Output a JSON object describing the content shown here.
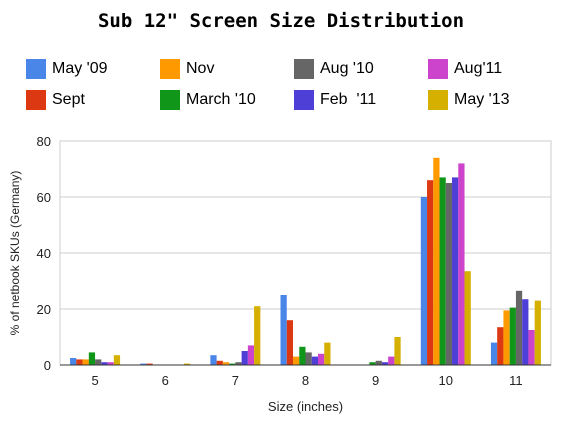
{
  "chart_data": {
    "type": "bar",
    "title": "Sub 12\" Screen Size Distribution",
    "xlabel": "Size (inches)",
    "ylabel": "% of netbook SKUs (Germany)",
    "ylim": [
      0,
      80
    ],
    "yticks": [
      "0",
      "20",
      "40",
      "60",
      "80"
    ],
    "grid": true,
    "legend_position": "top",
    "categories": [
      "5",
      "6",
      "7",
      "8",
      "9",
      "10",
      "11"
    ],
    "series": [
      {
        "name": "May '09",
        "color": "#4a86e8",
        "values": [
          2.5,
          0.5,
          3.5,
          25,
          0,
          60,
          8
        ]
      },
      {
        "name": "Sept",
        "color": "#dc3912",
        "values": [
          2,
          0.5,
          1.5,
          16,
          0,
          66,
          13.5
        ]
      },
      {
        "name": "Nov",
        "color": "#ff9900",
        "values": [
          2,
          0,
          1,
          3,
          0,
          74,
          19.5
        ]
      },
      {
        "name": "March '10",
        "color": "#109618",
        "values": [
          4.5,
          0,
          0.5,
          6.5,
          1,
          67,
          20.5
        ]
      },
      {
        "name": "Aug '10",
        "color": "#666666",
        "values": [
          2,
          0,
          1,
          4.5,
          1.5,
          65,
          26.5
        ]
      },
      {
        "name": "Feb  '11",
        "color": "#4e3fd6",
        "values": [
          1,
          0,
          5,
          3,
          1,
          67,
          23.5
        ]
      },
      {
        "name": "Aug'11",
        "color": "#cc44cc",
        "values": [
          1,
          0,
          7,
          4,
          3,
          72,
          12.5
        ]
      },
      {
        "name": "May '13",
        "color": "#d5b000",
        "values": [
          3.5,
          0.5,
          21,
          8,
          10,
          33.5,
          23
        ]
      }
    ]
  }
}
